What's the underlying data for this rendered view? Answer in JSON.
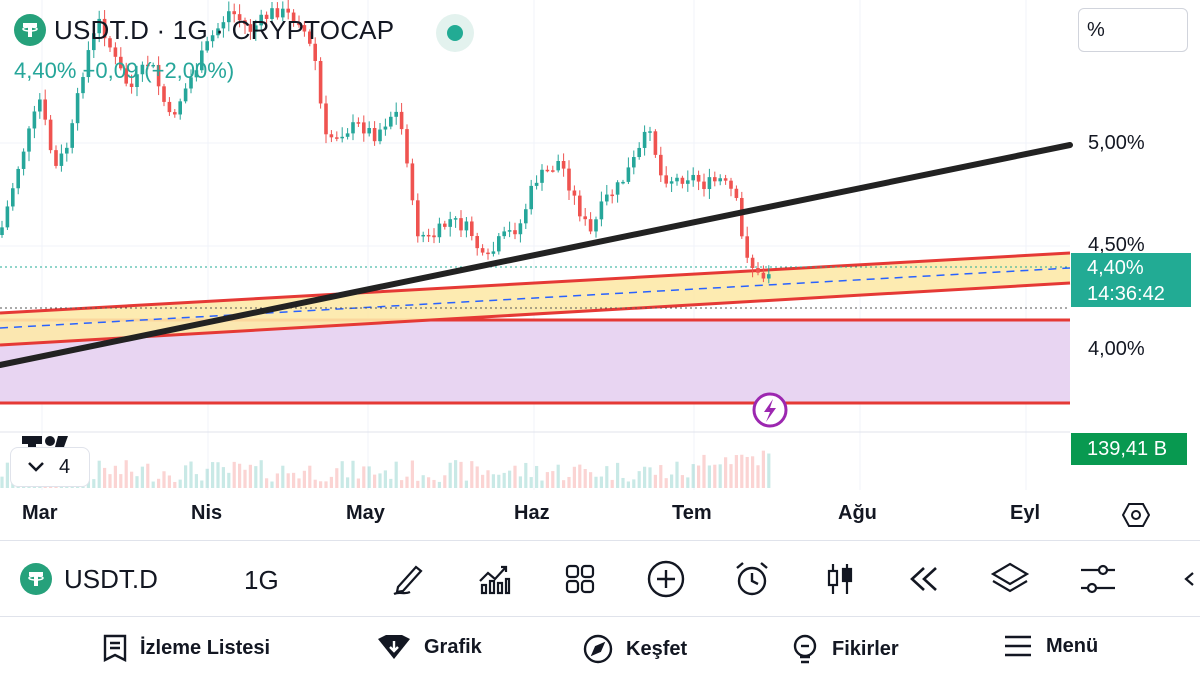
{
  "header": {
    "title": "USDT.D · 1G · CRYPTOCAP",
    "change": "4,40% +0,09 (+2,00%)",
    "scale_button": "%"
  },
  "price_axis": {
    "labels": [
      "5,00%",
      "4,50%",
      "4,00%"
    ],
    "current_price": "4,40%",
    "countdown": "14:36:42",
    "volume_value": "139,41 B"
  },
  "time_axis": {
    "labels": [
      "Mar",
      "Nis",
      "May",
      "Haz",
      "Tem",
      "Ağu",
      "Eyl"
    ]
  },
  "indicators": {
    "collapsed_count": "4"
  },
  "toolbar": {
    "symbol": "USDT.D",
    "interval": "1G",
    "icons": [
      "draw-icon",
      "indicators-icon",
      "templates-icon",
      "add-icon",
      "alert-icon",
      "candle-style-icon",
      "replay-icon",
      "layers-icon",
      "settings-icon",
      "chevron-left-icon"
    ]
  },
  "bottom_nav": {
    "items": [
      "İzleme Listesi",
      "Grafik",
      "Keşfet",
      "Fikirler",
      "Menü"
    ]
  },
  "colors": {
    "up": "#26a69a",
    "down": "#ef5350",
    "accent": "#22ab94",
    "trend_line": "#222222",
    "zone_line": "#e53935"
  }
}
